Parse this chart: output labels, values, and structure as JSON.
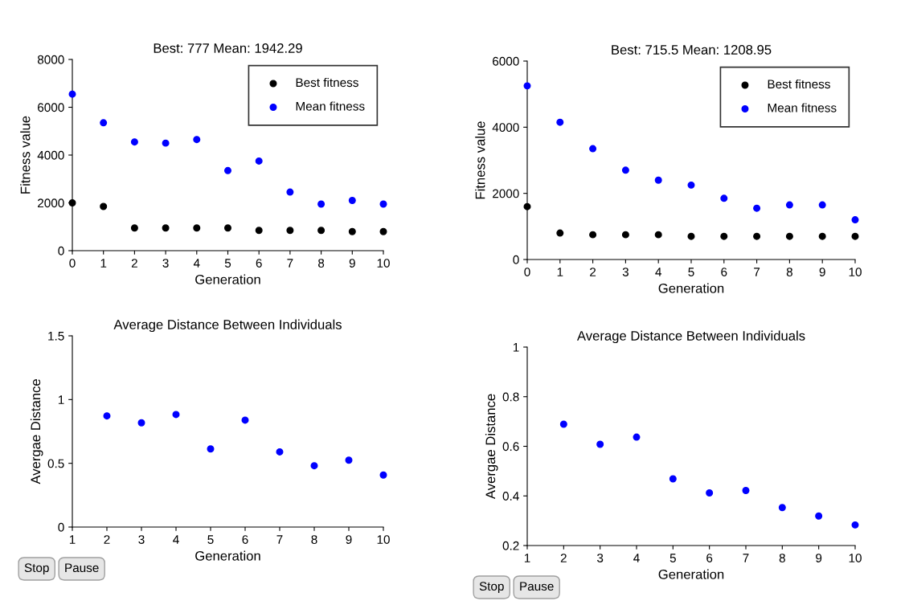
{
  "chart_data": [
    {
      "type": "scatter",
      "title": "Best: 777 Mean: 1942.29",
      "xlabel": "Generation",
      "ylabel": "Fitness value",
      "x": [
        0,
        1,
        2,
        3,
        4,
        5,
        6,
        7,
        8,
        9,
        10
      ],
      "xlim": [
        0,
        10
      ],
      "xticks": [
        0,
        1,
        2,
        3,
        4,
        5,
        6,
        7,
        8,
        9,
        10
      ],
      "ylim": [
        0,
        8000
      ],
      "yticks": [
        0,
        2000,
        4000,
        6000,
        8000
      ],
      "marker": "circle",
      "legend": "top right",
      "grid": false,
      "series": [
        {
          "name": "Best fitness",
          "color": "#000000",
          "values": [
            2000,
            1850,
            950,
            950,
            950,
            950,
            850,
            850,
            850,
            800,
            800
          ]
        },
        {
          "name": "Mean fitness",
          "color": "#0000ff",
          "values": [
            6550,
            5350,
            4550,
            4500,
            4650,
            3350,
            3750,
            2450,
            1950,
            2100,
            1950
          ]
        }
      ]
    },
    {
      "type": "scatter",
      "title": "Best: 715.5 Mean: 1208.95",
      "xlabel": "Generation",
      "ylabel": "Fitness value",
      "x": [
        0,
        1,
        2,
        3,
        4,
        5,
        6,
        7,
        8,
        9,
        10
      ],
      "xlim": [
        0,
        10
      ],
      "xticks": [
        0,
        1,
        2,
        3,
        4,
        5,
        6,
        7,
        8,
        9,
        10
      ],
      "ylim": [
        0,
        6000
      ],
      "yticks": [
        0,
        2000,
        4000,
        6000
      ],
      "marker": "circle",
      "legend": "top right",
      "grid": false,
      "series": [
        {
          "name": "Best fitness",
          "color": "#000000",
          "values": [
            1600,
            800,
            750,
            750,
            750,
            700,
            700,
            700,
            700,
            700,
            700
          ]
        },
        {
          "name": "Mean fitness",
          "color": "#0000ff",
          "values": [
            5250,
            4150,
            3350,
            2700,
            2400,
            2250,
            1850,
            1550,
            1650,
            1650,
            1200
          ]
        }
      ]
    },
    {
      "type": "scatter",
      "title": "Average Distance Between Individuals",
      "xlabel": "Generation",
      "ylabel": "Avergae Distance",
      "x": [
        2,
        3,
        4,
        5,
        6,
        7,
        8,
        9,
        10
      ],
      "xlim": [
        1,
        10
      ],
      "xticks": [
        1,
        2,
        3,
        4,
        5,
        6,
        7,
        8,
        9,
        10
      ],
      "ylim": [
        0,
        1.5
      ],
      "yticks": [
        0,
        0.5,
        1,
        1.5
      ],
      "marker": "circle",
      "grid": false,
      "annotations": [
        "Stop",
        "Pause"
      ],
      "series": [
        {
          "color": "#0000ff",
          "values": [
            0.872,
            0.818,
            0.883,
            0.613,
            0.839,
            0.59,
            0.481,
            0.525,
            0.408
          ]
        }
      ]
    },
    {
      "type": "scatter",
      "title": "Average Distance Between Individuals",
      "xlabel": "Generation",
      "ylabel": "Avergae Distance",
      "x": [
        2,
        3,
        4,
        5,
        6,
        7,
        8,
        9,
        10
      ],
      "xlim": [
        1,
        10
      ],
      "xticks": [
        1,
        2,
        3,
        4,
        5,
        6,
        7,
        8,
        9,
        10
      ],
      "ylim": [
        0.2,
        1
      ],
      "yticks": [
        0.2,
        0.4,
        0.6,
        0.8,
        1
      ],
      "marker": "circle",
      "grid": false,
      "annotations": [
        "Stop",
        "Pause"
      ],
      "series": [
        {
          "color": "#0000ff",
          "values": [
            0.689,
            0.608,
            0.637,
            0.469,
            0.412,
            0.422,
            0.353,
            0.319,
            0.283
          ]
        }
      ]
    }
  ]
}
